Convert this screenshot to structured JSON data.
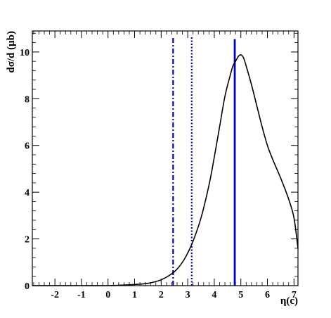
{
  "chart_data": {
    "type": "line",
    "title": "",
    "xlabel": "η(c)",
    "ylabel": "dσ/d (μb)",
    "xlim": [
      -2.85,
      7.15
    ],
    "ylim": [
      0,
      10.9
    ],
    "x_ticks": [
      -2,
      -1,
      0,
      1,
      2,
      3,
      4,
      5,
      6,
      7
    ],
    "x_tick_labels": [
      "-2",
      "-1",
      "0",
      "1",
      "2",
      "3",
      "4",
      "5",
      "6",
      "7"
    ],
    "y_ticks": [
      0,
      2,
      4,
      6,
      8,
      10
    ],
    "y_tick_labels": [
      "0",
      "2",
      "4",
      "6",
      "8",
      "10"
    ],
    "grid": false,
    "series": [
      {
        "color": "#000000",
        "style": "solid",
        "x": [
          -2.85,
          -2,
          -1,
          0,
          0.5,
          1,
          1.5,
          2,
          2.5,
          2.8,
          3.0,
          3.2,
          3.5,
          3.8,
          4.0,
          4.2,
          4.4,
          4.6,
          4.7,
          4.8,
          4.9,
          5.0,
          5.1,
          5.2,
          5.4,
          5.6,
          5.8,
          6.0,
          6.2,
          6.5,
          6.8,
          7.0,
          7.15
        ],
        "y": [
          0,
          0,
          0,
          0,
          0.02,
          0.05,
          0.1,
          0.25,
          0.6,
          1.0,
          1.4,
          1.9,
          2.9,
          4.3,
          5.5,
          6.8,
          8.1,
          9.0,
          9.4,
          9.6,
          9.8,
          9.88,
          9.75,
          9.4,
          8.6,
          7.7,
          6.8,
          6.0,
          5.4,
          4.6,
          3.7,
          2.9,
          1.6
        ]
      }
    ],
    "vertical_lines": [
      {
        "x": 2.45,
        "style": "dashdot",
        "color": "#0000cc",
        "ymax": 10.65
      },
      {
        "x": 3.15,
        "style": "dotted",
        "color": "#0000cc",
        "ymax": 10.65
      },
      {
        "x": 4.77,
        "style": "solid",
        "color": "#0000cc",
        "ymax": 10.55
      }
    ]
  }
}
